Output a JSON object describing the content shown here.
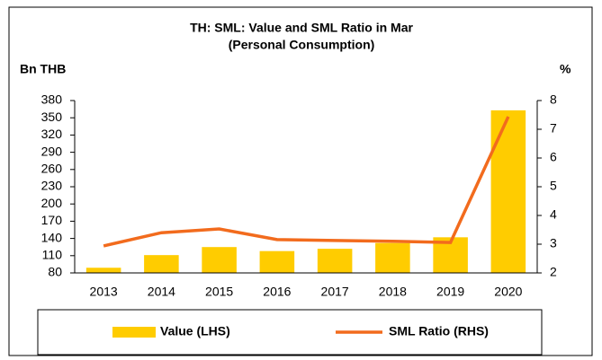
{
  "chart_data": {
    "type": "bar-line",
    "title": "TH: SML: Value and SML Ratio in Mar",
    "subtitle": "(Personal Consumption)",
    "ylabel": "Bn THB",
    "y2label": "%",
    "categories": [
      "2013",
      "2014",
      "2015",
      "2016",
      "2017",
      "2018",
      "2019",
      "2020"
    ],
    "series": [
      {
        "name": "Value (LHS)",
        "color": "#FFCC00",
        "type": "bar",
        "values": [
          89,
          111,
          125,
          118,
          122,
          132,
          142,
          363
        ]
      },
      {
        "name": "SML Ratio (RHS)",
        "color": "#F26B1D",
        "type": "line",
        "axis": "y2",
        "values": [
          2.94,
          3.4,
          3.53,
          3.16,
          3.13,
          3.1,
          3.06,
          7.44
        ]
      }
    ],
    "ylim": [
      80,
      380
    ],
    "yticks": [
      80,
      110,
      140,
      170,
      200,
      230,
      260,
      290,
      320,
      350,
      380
    ],
    "y2lim": [
      2,
      8
    ],
    "y2ticks": [
      2,
      3,
      4,
      5,
      6,
      7,
      8
    ],
    "legend": "bottom"
  }
}
